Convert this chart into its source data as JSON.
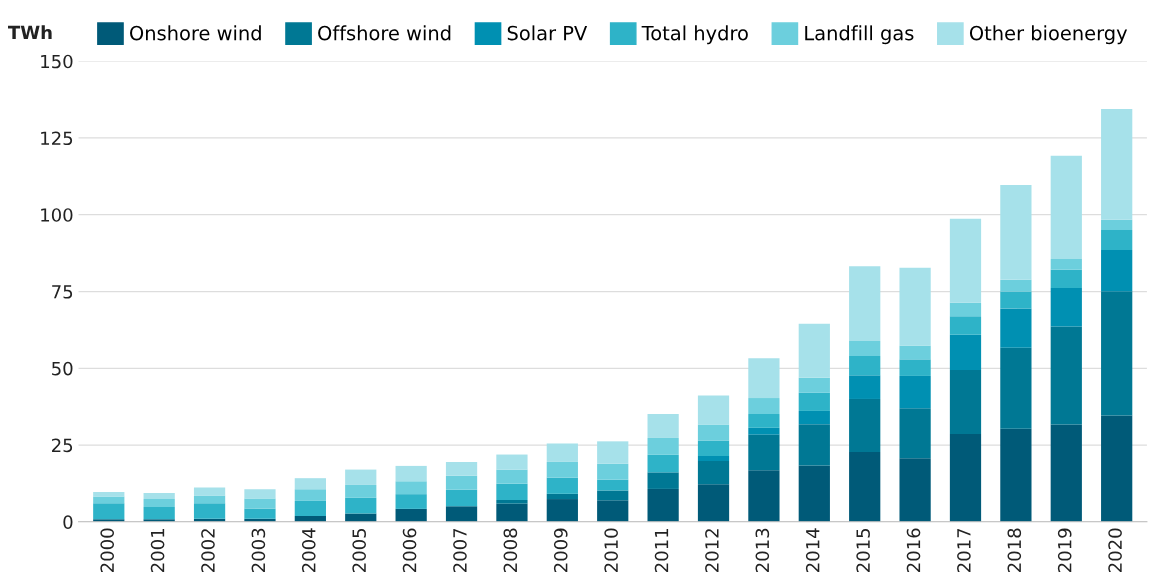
{
  "chart_data": {
    "type": "bar",
    "stacked": true,
    "ylabel": "TWh",
    "categories": [
      "2000",
      "2001",
      "2002",
      "2003",
      "2004",
      "2005",
      "2006",
      "2007",
      "2008",
      "2009",
      "2010",
      "2011",
      "2012",
      "2013",
      "2014",
      "2015",
      "2016",
      "2017",
      "2018",
      "2019",
      "2020"
    ],
    "series": [
      {
        "name": "Onshore wind",
        "color": "#005a78",
        "values": [
          0.8,
          0.8,
          1.0,
          1.0,
          1.9,
          2.7,
          4.2,
          5.1,
          5.9,
          7.4,
          7.0,
          10.7,
          12.2,
          16.8,
          18.3,
          22.7,
          20.7,
          28.6,
          30.3,
          31.7,
          34.6
        ]
      },
      {
        "name": "Offshore wind",
        "color": "#007894",
        "values": [
          0,
          0,
          0,
          0,
          0,
          0,
          0,
          0,
          1.2,
          1.7,
          3.2,
          5.4,
          7.6,
          11.6,
          13.5,
          17.3,
          16.3,
          20.8,
          26.4,
          31.9,
          40.5
        ]
      },
      {
        "name": "Solar PV",
        "color": "#0090b2",
        "values": [
          0,
          0,
          0,
          0,
          0,
          0,
          0,
          0,
          0,
          0,
          0,
          0,
          1.6,
          2.2,
          4.3,
          7.7,
          10.5,
          11.5,
          12.8,
          12.5,
          13.4
        ]
      },
      {
        "name": "Total hydro",
        "color": "#2eb3c8",
        "values": [
          5.2,
          4.0,
          5.0,
          3.3,
          4.9,
          5.1,
          4.8,
          5.3,
          5.3,
          5.3,
          3.5,
          5.7,
          5.1,
          4.5,
          5.9,
          6.3,
          5.4,
          6.0,
          5.5,
          6.0,
          6.5
        ]
      },
      {
        "name": "Landfill gas",
        "color": "#6ccfdd",
        "values": [
          2.2,
          2.6,
          2.6,
          3.3,
          3.8,
          4.2,
          4.2,
          4.6,
          4.6,
          5.1,
          5.2,
          5.5,
          5.2,
          5.2,
          4.9,
          4.9,
          4.5,
          4.4,
          3.8,
          3.5,
          3.4
        ]
      },
      {
        "name": "Other bioenergy",
        "color": "#a6e1ea",
        "values": [
          1.5,
          2.0,
          2.6,
          3.0,
          3.6,
          5.0,
          5.0,
          4.5,
          4.9,
          6.0,
          7.3,
          7.8,
          9.4,
          13.0,
          17.6,
          24.3,
          25.3,
          27.4,
          30.9,
          33.6,
          36.0
        ]
      }
    ],
    "ylim": [
      0,
      150
    ],
    "yticks": [
      0,
      25,
      50,
      75,
      100,
      125,
      150
    ],
    "grid": "y",
    "legend": "top"
  }
}
